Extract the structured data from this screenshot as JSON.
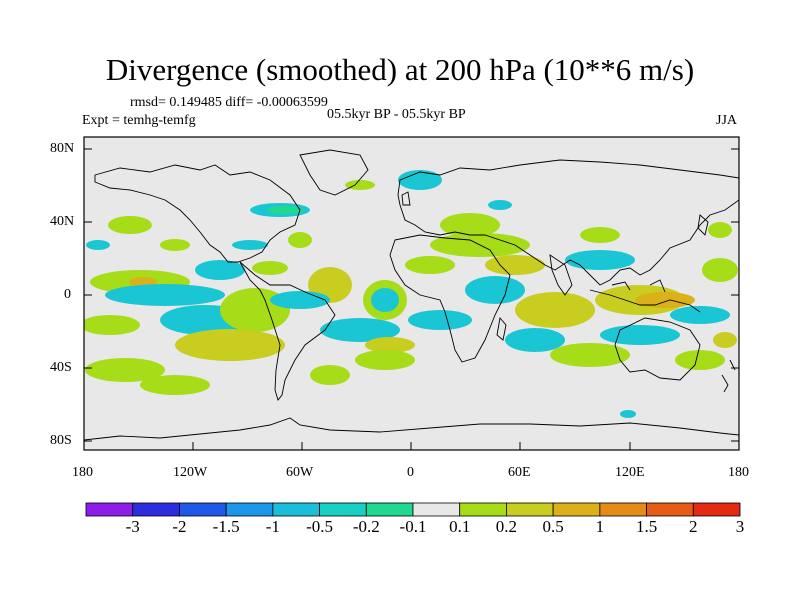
{
  "title": "Divergence (smoothed) at 200 hPa (10**6 m/s)",
  "stats": "rmsd= 0.149485  diff= -0.00063599",
  "expt": "Expt = temhg-temfg",
  "period": "05.5kyr BP - 05.5kyr BP",
  "season": "JJA",
  "lat_labels": [
    "80N",
    "40N",
    "0",
    "40S",
    "80S"
  ],
  "lon_labels": [
    "180",
    "120W",
    "60W",
    "0",
    "60E",
    "120E",
    "180"
  ],
  "colorbar": {
    "labels": [
      "-3",
      "-2",
      "-1.5",
      "-1",
      "-0.5",
      "-0.2",
      "-0.1",
      "0.1",
      "0.2",
      "0.5",
      "1",
      "1.5",
      "2",
      "3"
    ],
    "colors": [
      "#8d1ee9",
      "#2d2de0",
      "#2059e8",
      "#1a97e8",
      "#1bbdd8",
      "#18d1c2",
      "#1fd990",
      "#e8e8e8",
      "#a7dc18",
      "#c9cd20",
      "#dcb018",
      "#e48c1a",
      "#e65c16",
      "#e42a12"
    ]
  },
  "map_colors": {
    "background": "#e8e8e8",
    "cyan": "#1bc6d4",
    "teal": "#1fd990",
    "green": "#a7dc18",
    "olive": "#c9cd20",
    "orange": "#dcb018",
    "coast": "#000000"
  }
}
